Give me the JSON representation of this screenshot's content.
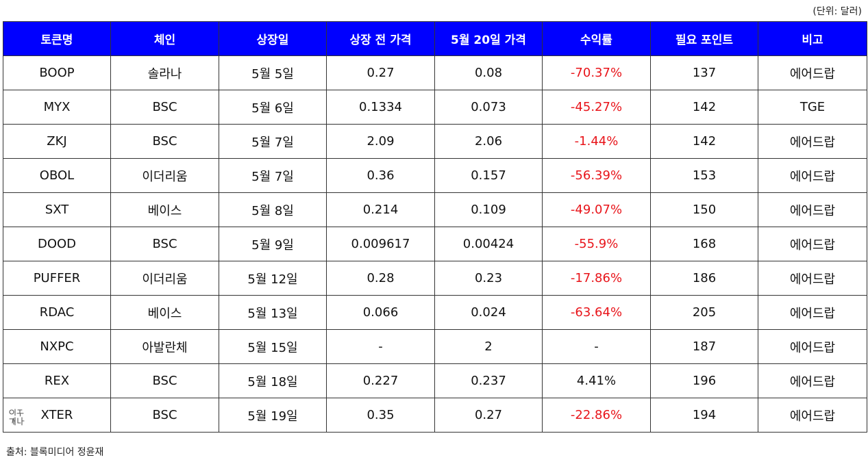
{
  "unit_note": "(단위: 달러)",
  "headers": [
    "토큰명",
    "체인",
    "상장일",
    "상장 전 가격",
    "5월 20일 가격",
    "수익률",
    "필요 포인트",
    "비고"
  ],
  "rows": [
    {
      "token": "BOOP",
      "chain": "솔라나",
      "listing_date": "5월 5일",
      "pre_price": "0.27",
      "may20_price": "0.08",
      "return": "-70.37%",
      "points": "137",
      "note": "에어드랍",
      "negative": true
    },
    {
      "token": "MYX",
      "chain": "BSC",
      "listing_date": "5월 6일",
      "pre_price": "0.1334",
      "may20_price": "0.073",
      "return": "-45.27%",
      "points": "142",
      "note": "TGE",
      "negative": true
    },
    {
      "token": "ZKJ",
      "chain": "BSC",
      "listing_date": "5월 7일",
      "pre_price": "2.09",
      "may20_price": "2.06",
      "return": "-1.44%",
      "points": "142",
      "note": "에어드랍",
      "negative": true
    },
    {
      "token": "OBOL",
      "chain": "이더리움",
      "listing_date": "5월 7일",
      "pre_price": "0.36",
      "may20_price": "0.157",
      "return": "-56.39%",
      "points": "153",
      "note": "에어드랍",
      "negative": true
    },
    {
      "token": "SXT",
      "chain": "베이스",
      "listing_date": "5월 8일",
      "pre_price": "0.214",
      "may20_price": "0.109",
      "return": "-49.07%",
      "points": "150",
      "note": "에어드랍",
      "negative": true
    },
    {
      "token": "DOOD",
      "chain": "BSC",
      "listing_date": "5월 9일",
      "pre_price": "0.009617",
      "may20_price": "0.00424",
      "return": "-55.9%",
      "points": "168",
      "note": "에어드랍",
      "negative": true
    },
    {
      "token": "PUFFER",
      "chain": "이더리움",
      "listing_date": "5월 12일",
      "pre_price": "0.28",
      "may20_price": "0.23",
      "return": "-17.86%",
      "points": "186",
      "note": "에어드랍",
      "negative": true
    },
    {
      "token": "RDAC",
      "chain": "베이스",
      "listing_date": "5월 13일",
      "pre_price": "0.066",
      "may20_price": "0.024",
      "return": "-63.64%",
      "points": "205",
      "note": "에어드랍",
      "negative": true
    },
    {
      "token": "NXPC",
      "chain": "아발란체",
      "listing_date": "5월 15일",
      "pre_price": "-",
      "may20_price": "2",
      "return": "-",
      "points": "187",
      "note": "에어드랍",
      "negative": false
    },
    {
      "token": "REX",
      "chain": "BSC",
      "listing_date": "5월 18일",
      "pre_price": "0.227",
      "may20_price": "0.237",
      "return": "4.41%",
      "points": "196",
      "note": "에어드랍",
      "negative": false
    },
    {
      "token": "XTER",
      "chain": "BSC",
      "listing_date": "5월 19일",
      "pre_price": "0.35",
      "may20_price": "0.27",
      "return": "-22.86%",
      "points": "194",
      "note": "에어드랍",
      "negative": true
    }
  ],
  "source_note": "출처: 블록미디어 정윤재",
  "watermark": {
    "text": "이투 게나"
  },
  "colors": {
    "header_bg": "#0000ff",
    "header_text": "#ffffff",
    "negative_text": "#e8141a",
    "border": "#333333"
  }
}
